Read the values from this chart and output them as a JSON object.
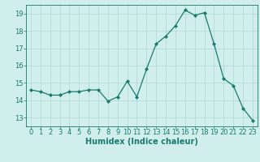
{
  "x": [
    0,
    1,
    2,
    3,
    4,
    5,
    6,
    7,
    8,
    9,
    10,
    11,
    12,
    13,
    14,
    15,
    16,
    17,
    18,
    19,
    20,
    21,
    22,
    23
  ],
  "y": [
    14.6,
    14.5,
    14.3,
    14.3,
    14.5,
    14.5,
    14.6,
    14.6,
    13.95,
    14.2,
    15.1,
    14.2,
    15.8,
    17.25,
    17.7,
    18.3,
    19.2,
    18.9,
    19.05,
    17.25,
    15.25,
    14.85,
    13.55,
    12.85
  ],
  "line_color": "#1a7a6e",
  "marker": "D",
  "marker_size": 2.0,
  "bg_color": "#d0eeeb",
  "grid_color": "#aed8d4",
  "axis_color": "#1a7a6e",
  "xlabel": "Humidex (Indice chaleur)",
  "xlabel_fontsize": 7.0,
  "tick_fontsize": 6.0,
  "ylim": [
    12.5,
    19.5
  ],
  "xlim": [
    -0.5,
    23.5
  ],
  "yticks": [
    13,
    14,
    15,
    16,
    17,
    18,
    19
  ],
  "xticks": [
    0,
    1,
    2,
    3,
    4,
    5,
    6,
    7,
    8,
    9,
    10,
    11,
    12,
    13,
    14,
    15,
    16,
    17,
    18,
    19,
    20,
    21,
    22,
    23
  ]
}
